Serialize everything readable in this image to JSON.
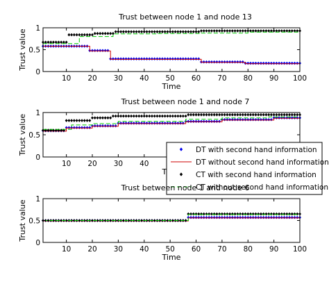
{
  "chart_data": [
    {
      "type": "scatter",
      "title": "Trust between node 1 and node 13",
      "xlabel": "Time",
      "ylabel": "Trust value",
      "xlim": [
        1,
        100
      ],
      "ylim": [
        0,
        1
      ],
      "xticks": [
        "10",
        "20",
        "30",
        "40",
        "50",
        "60",
        "70",
        "80",
        "90",
        "100"
      ],
      "yticks": [
        "0",
        "0.5",
        "1"
      ],
      "grid": false,
      "series": [
        {
          "name": "DT with second hand information",
          "marker": "diamond",
          "color": "#0000ee",
          "steps": [
            [
              1,
              0.58
            ],
            [
              19,
              0.48
            ],
            [
              27,
              0.29
            ],
            [
              62,
              0.22
            ],
            [
              79,
              0.19
            ]
          ]
        },
        {
          "name": "DT without second hand information",
          "marker": "line",
          "color": "#cc0000",
          "steps": [
            [
              1,
              0.58
            ],
            [
              19,
              0.47
            ],
            [
              27,
              0.28
            ],
            [
              62,
              0.21
            ],
            [
              79,
              0.18
            ]
          ]
        },
        {
          "name": "CT with second hand information",
          "marker": "diamond",
          "color": "#000000",
          "steps": [
            [
              1,
              0.67
            ],
            [
              11,
              0.84
            ],
            [
              21,
              0.87
            ],
            [
              29,
              0.91
            ],
            [
              62,
              0.93
            ]
          ]
        },
        {
          "name": "CT without second hand information",
          "marker": "dashed",
          "color": "#00cc00",
          "steps": [
            [
              1,
              0.64
            ],
            [
              15,
              0.8
            ],
            [
              28,
              0.86
            ],
            [
              45,
              0.87
            ],
            [
              62,
              0.88
            ],
            [
              80,
              0.9
            ]
          ]
        }
      ]
    },
    {
      "type": "scatter",
      "title": "Trust between node 1 and node 7",
      "xlabel": "Time",
      "ylabel": "Trust value",
      "xlim": [
        1,
        100
      ],
      "ylim": [
        0,
        1
      ],
      "xticks": [
        "10",
        "20",
        "30",
        "40"
      ],
      "yticks": [
        "0",
        "0.5",
        "1"
      ],
      "grid": false,
      "legend_position": "lower-right",
      "series": [
        {
          "name": "DT with second hand information",
          "marker": "diamond",
          "color": "#0000ee",
          "steps": [
            [
              1,
              0.59
            ],
            [
              10,
              0.66
            ],
            [
              20,
              0.7
            ],
            [
              30,
              0.76
            ],
            [
              56,
              0.8
            ],
            [
              70,
              0.84
            ],
            [
              90,
              0.88
            ]
          ]
        },
        {
          "name": "DT without second hand information",
          "marker": "line",
          "color": "#cc0000",
          "steps": [
            [
              1,
              0.58
            ],
            [
              10,
              0.65
            ],
            [
              20,
              0.69
            ],
            [
              30,
              0.75
            ],
            [
              56,
              0.79
            ],
            [
              70,
              0.83
            ],
            [
              90,
              0.87
            ]
          ]
        },
        {
          "name": "CT with second hand information",
          "marker": "diamond",
          "color": "#000000",
          "steps": [
            [
              1,
              0.6
            ],
            [
              10,
              0.82
            ],
            [
              20,
              0.88
            ],
            [
              28,
              0.92
            ],
            [
              57,
              0.95
            ]
          ]
        },
        {
          "name": "CT without second hand information",
          "marker": "dashed",
          "color": "#00cc00",
          "steps": [
            [
              1,
              0.62
            ],
            [
              12,
              0.72
            ],
            [
              20,
              0.75
            ],
            [
              30,
              0.8
            ],
            [
              56,
              0.85
            ],
            [
              70,
              0.88
            ],
            [
              88,
              0.9
            ]
          ]
        }
      ]
    },
    {
      "type": "scatter",
      "title": "Trust between node 1 and node 6",
      "xlabel": "Time",
      "ylabel": "Trust value",
      "xlim": [
        1,
        100
      ],
      "ylim": [
        0,
        1
      ],
      "xticks": [
        "10",
        "20",
        "30",
        "40",
        "50",
        "60",
        "70",
        "80",
        "90",
        "100"
      ],
      "yticks": [
        "0",
        "0.5",
        "1"
      ],
      "grid": false,
      "series": [
        {
          "name": "DT with second hand information",
          "marker": "diamond",
          "color": "#0000ee",
          "steps": [
            [
              1,
              0.5
            ],
            [
              57,
              0.57
            ]
          ]
        },
        {
          "name": "DT without second hand information",
          "marker": "line",
          "color": "#cc0000",
          "steps": [
            [
              1,
              0.49
            ],
            [
              57,
              0.56
            ]
          ]
        },
        {
          "name": "CT with second hand information",
          "marker": "diamond",
          "color": "#000000",
          "steps": [
            [
              1,
              0.5
            ],
            [
              57,
              0.65
            ]
          ]
        },
        {
          "name": "CT without second hand information",
          "marker": "dashed",
          "color": "#00cc00",
          "steps": [
            [
              1,
              0.5
            ],
            [
              57,
              0.64
            ]
          ]
        }
      ]
    }
  ]
}
